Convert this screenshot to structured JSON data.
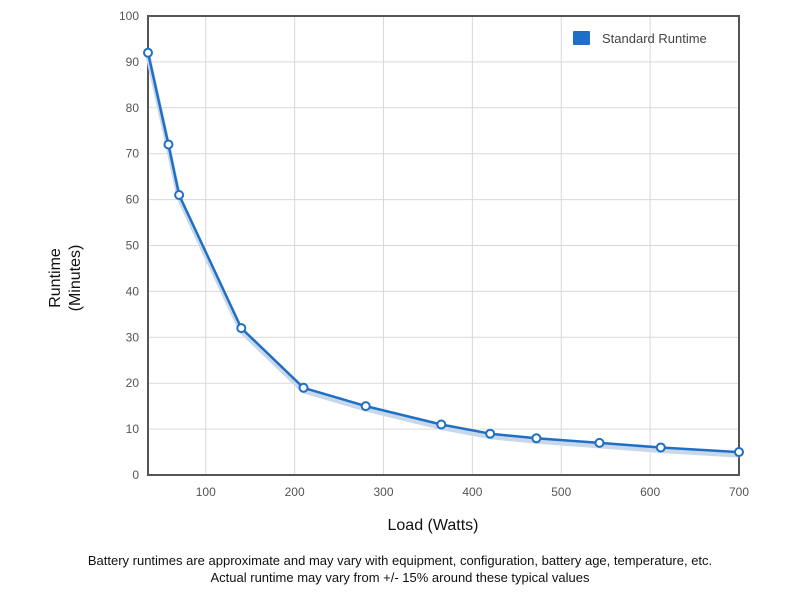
{
  "chart_data": {
    "type": "line",
    "xlabel": "Load (Watts)",
    "ylabel": "Runtime",
    "ylabel_unit": "(Minutes)",
    "xlim": [
      35,
      700
    ],
    "ylim": [
      0,
      100
    ],
    "x_ticks": [
      100,
      200,
      300,
      400,
      500,
      600,
      700
    ],
    "y_ticks": [
      0,
      10,
      20,
      30,
      40,
      50,
      60,
      70,
      80,
      90,
      100
    ],
    "grid": true,
    "legend_position": "top-right",
    "series": [
      {
        "name": "Standard Runtime",
        "color": "#1f6fc5",
        "x": [
          35,
          58,
          70,
          140,
          210,
          280,
          365,
          420,
          472,
          543,
          612,
          700
        ],
        "y": [
          92,
          72,
          61,
          32,
          19,
          15,
          11,
          9,
          8,
          7,
          6,
          5
        ]
      }
    ]
  },
  "captions": {
    "line1": "Battery runtimes are approximate and may vary with equipment, configuration, battery age, temperature, etc.",
    "line2": "Actual runtime may vary from +/- 15% around these typical values"
  }
}
